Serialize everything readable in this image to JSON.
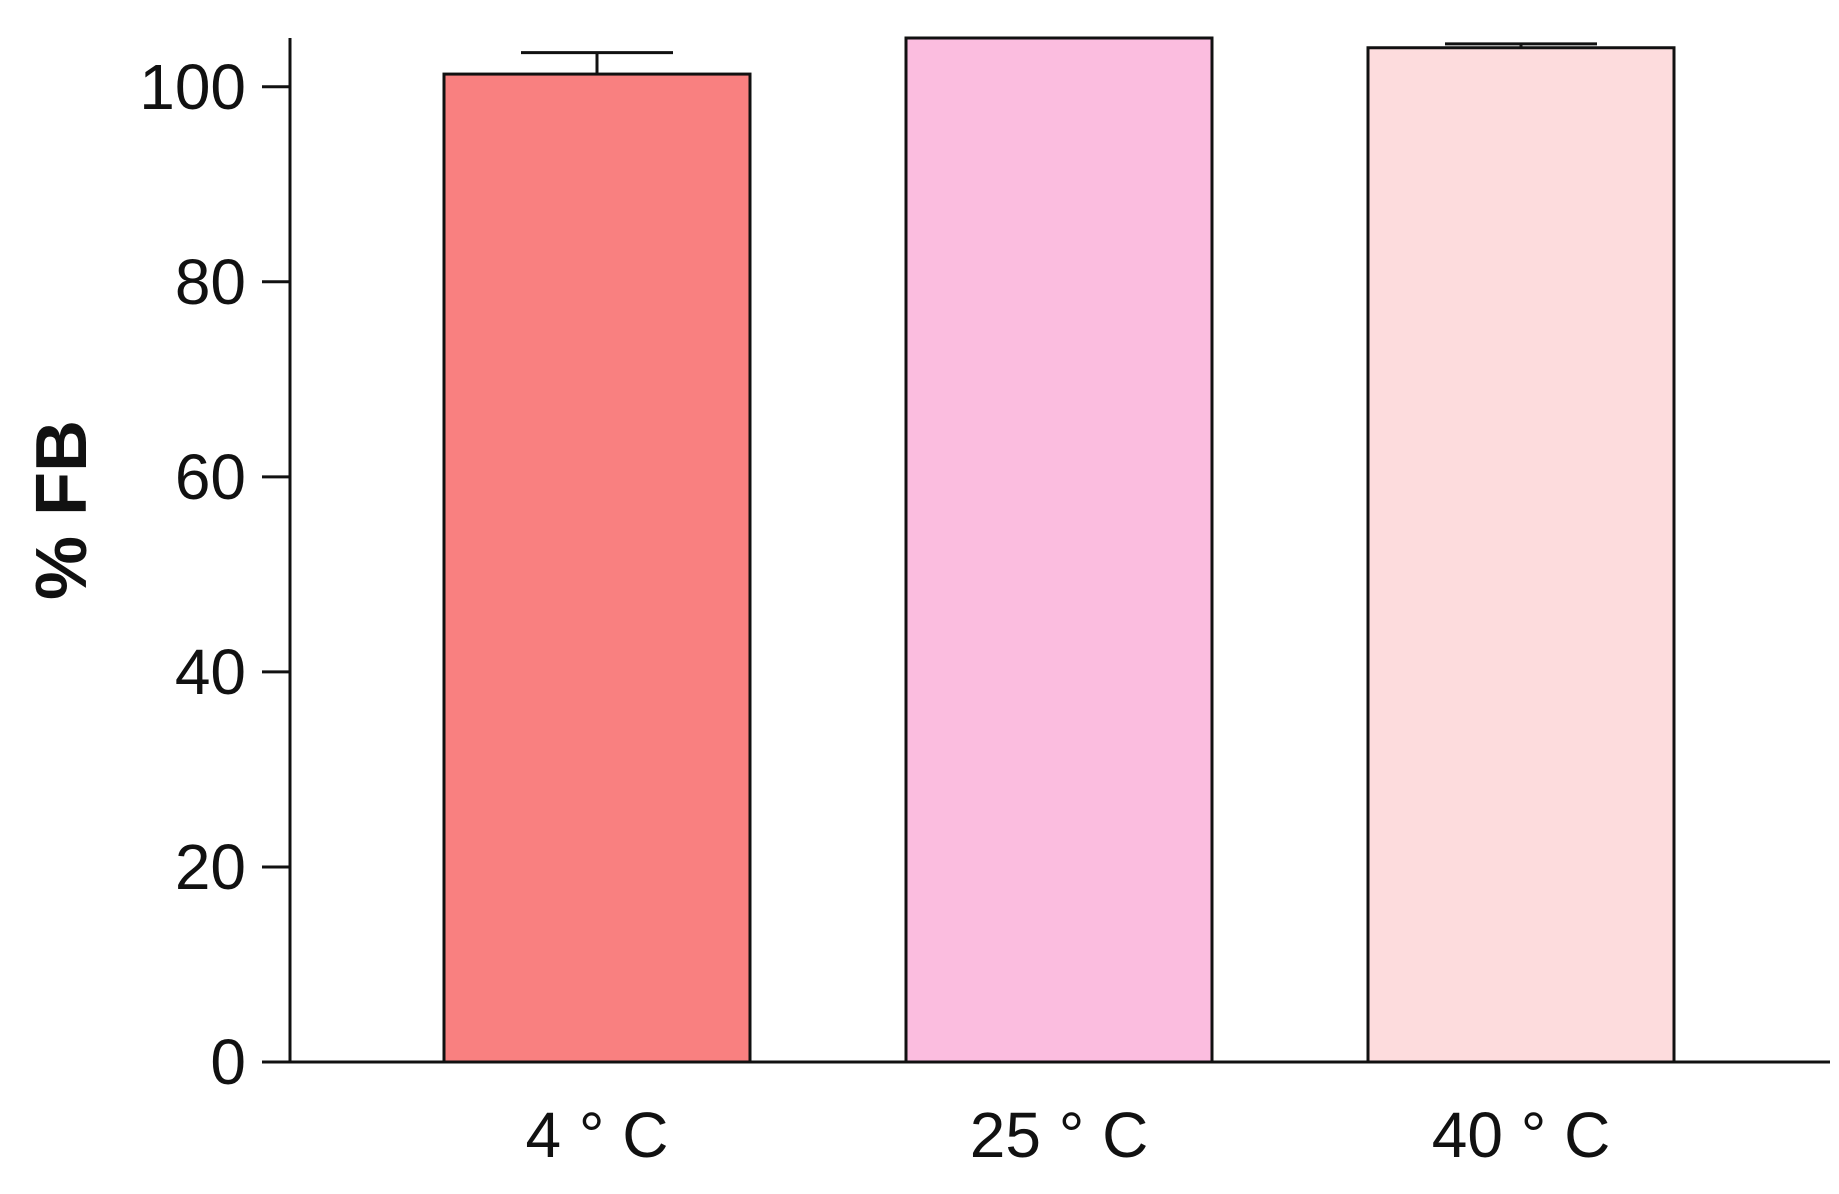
{
  "chart_data": {
    "type": "bar",
    "categories": [
      "4 ° C",
      "25 ° C",
      "40 ° C"
    ],
    "values": [
      101.3,
      105.0,
      104.0
    ],
    "error_bars": [
      2.2,
      0.0,
      0.4
    ],
    "colors": [
      "#f98080",
      "#fbbddf",
      "#fddcdd"
    ],
    "title": "",
    "xlabel": "",
    "ylabel": "% FB",
    "ylim": [
      0,
      105
    ],
    "yticks": [
      0,
      20,
      40,
      60,
      80,
      100
    ],
    "grid": false,
    "legend": "none"
  }
}
